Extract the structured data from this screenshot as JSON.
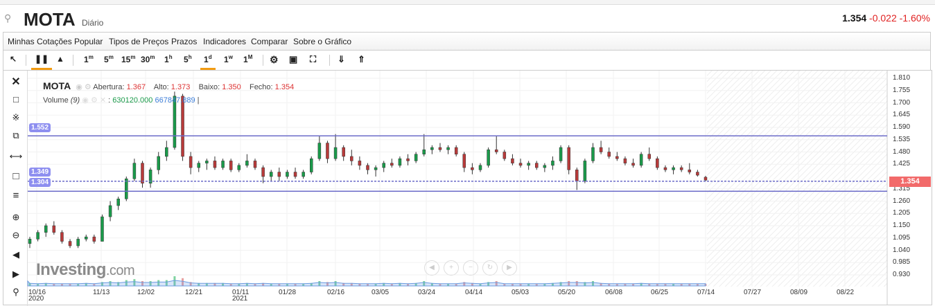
{
  "header": {
    "symbol": "MOTA",
    "period": "Diário",
    "last": "1.354",
    "change": "-0.022",
    "change_pct": "-1.60%"
  },
  "menu": [
    "Minhas Cotações",
    "Popular",
    "Tipos de Preços",
    "Prazos",
    "Indicadores",
    "Comparar",
    "Sobre o Gráfico"
  ],
  "toolbar": {
    "intervals": [
      {
        "n": "1",
        "u": "m"
      },
      {
        "n": "5",
        "u": "m"
      },
      {
        "n": "15",
        "u": "m"
      },
      {
        "n": "30",
        "u": "m"
      },
      {
        "n": "1",
        "u": "h"
      },
      {
        "n": "5",
        "u": "h"
      },
      {
        "n": "1",
        "u": "d"
      },
      {
        "n": "1",
        "u": "w"
      },
      {
        "n": "1",
        "u": "M"
      }
    ],
    "active_interval": "1d",
    "active_chart_type": "candlestick"
  },
  "legend": {
    "symbol": "MOTA",
    "open_label": "Abertura:",
    "open": "1.367",
    "high_label": "Alto:",
    "high": "1.373",
    "low_label": "Baixo:",
    "low": "1.350",
    "close_label": "Fecho:",
    "close": "1.354",
    "volume_label": "Volume",
    "volume_param": "(9)",
    "volume_value": "630120.000",
    "volume_ma": "667847.889"
  },
  "logo": {
    "main": "Investing",
    "suffix": ".com"
  },
  "colors": {
    "up": "#1a9a4a",
    "down": "#b83a3a",
    "hline": "#6b6bc8",
    "price_tag": "#f26a6a",
    "accent": "#f39c12"
  },
  "chart_data": {
    "type": "candlestick",
    "y_ticks": [
      "1.810",
      "1.755",
      "1.700",
      "1.645",
      "1.590",
      "1.535",
      "1.480",
      "1.425",
      "1.315",
      "1.260",
      "1.205",
      "1.150",
      "1.095",
      "1.040",
      "0.985",
      "0.930"
    ],
    "ylim": [
      0.93,
      1.81
    ],
    "x_ticks": [
      {
        "d": "10/16",
        "y": "2020"
      },
      {
        "d": "11/13"
      },
      {
        "d": "12/02"
      },
      {
        "d": "12/21"
      },
      {
        "d": "01/11",
        "y": "2021"
      },
      {
        "d": "01/28"
      },
      {
        "d": "02/16"
      },
      {
        "d": "03/05"
      },
      {
        "d": "03/24"
      },
      {
        "d": "04/14"
      },
      {
        "d": "05/03"
      },
      {
        "d": "05/20"
      },
      {
        "d": "06/08"
      },
      {
        "d": "06/25"
      },
      {
        "d": "07/14"
      },
      {
        "d": "07/27"
      },
      {
        "d": "08/09"
      },
      {
        "d": "08/22"
      }
    ],
    "horizontal_lines": [
      {
        "value": "1.552"
      },
      {
        "value": "1.349"
      },
      {
        "value": "1.304"
      }
    ],
    "current_price": "1.354",
    "ohlc": [
      [
        1.07,
        1.1,
        1.05,
        1.09
      ],
      [
        1.09,
        1.13,
        1.08,
        1.12
      ],
      [
        1.12,
        1.16,
        1.1,
        1.15
      ],
      [
        1.15,
        1.17,
        1.11,
        1.12
      ],
      [
        1.12,
        1.13,
        1.07,
        1.08
      ],
      [
        1.08,
        1.09,
        1.05,
        1.06
      ],
      [
        1.06,
        1.1,
        1.05,
        1.09
      ],
      [
        1.09,
        1.11,
        1.08,
        1.1
      ],
      [
        1.1,
        1.11,
        1.07,
        1.08
      ],
      [
        1.08,
        1.2,
        1.08,
        1.19
      ],
      [
        1.19,
        1.26,
        1.17,
        1.24
      ],
      [
        1.24,
        1.28,
        1.22,
        1.27
      ],
      [
        1.27,
        1.37,
        1.26,
        1.36
      ],
      [
        1.36,
        1.45,
        1.35,
        1.43
      ],
      [
        1.43,
        1.44,
        1.32,
        1.34
      ],
      [
        1.34,
        1.41,
        1.32,
        1.4
      ],
      [
        1.4,
        1.48,
        1.38,
        1.46
      ],
      [
        1.46,
        1.53,
        1.44,
        1.5
      ],
      [
        1.5,
        1.75,
        1.49,
        1.73
      ],
      [
        1.73,
        1.74,
        1.44,
        1.46
      ],
      [
        1.46,
        1.48,
        1.38,
        1.41
      ],
      [
        1.41,
        1.44,
        1.39,
        1.43
      ],
      [
        1.43,
        1.45,
        1.4,
        1.44
      ],
      [
        1.44,
        1.46,
        1.4,
        1.41
      ],
      [
        1.41,
        1.45,
        1.4,
        1.44
      ],
      [
        1.44,
        1.45,
        1.39,
        1.4
      ],
      [
        1.4,
        1.43,
        1.39,
        1.42
      ],
      [
        1.42,
        1.47,
        1.41,
        1.44
      ],
      [
        1.44,
        1.45,
        1.4,
        1.41
      ],
      [
        1.41,
        1.42,
        1.34,
        1.37
      ],
      [
        1.37,
        1.4,
        1.35,
        1.39
      ],
      [
        1.39,
        1.41,
        1.35,
        1.37
      ],
      [
        1.37,
        1.4,
        1.36,
        1.39
      ],
      [
        1.39,
        1.41,
        1.36,
        1.37
      ],
      [
        1.37,
        1.4,
        1.36,
        1.39
      ],
      [
        1.39,
        1.46,
        1.38,
        1.45
      ],
      [
        1.45,
        1.55,
        1.44,
        1.52
      ],
      [
        1.52,
        1.53,
        1.43,
        1.45
      ],
      [
        1.45,
        1.56,
        1.44,
        1.5
      ],
      [
        1.5,
        1.51,
        1.44,
        1.46
      ],
      [
        1.46,
        1.49,
        1.42,
        1.44
      ],
      [
        1.44,
        1.46,
        1.4,
        1.42
      ],
      [
        1.42,
        1.43,
        1.38,
        1.4
      ],
      [
        1.4,
        1.42,
        1.37,
        1.41
      ],
      [
        1.41,
        1.44,
        1.39,
        1.43
      ],
      [
        1.43,
        1.45,
        1.41,
        1.42
      ],
      [
        1.42,
        1.46,
        1.41,
        1.45
      ],
      [
        1.45,
        1.47,
        1.42,
        1.44
      ],
      [
        1.44,
        1.48,
        1.43,
        1.47
      ],
      [
        1.47,
        1.56,
        1.46,
        1.49
      ],
      [
        1.49,
        1.51,
        1.47,
        1.5
      ],
      [
        1.5,
        1.52,
        1.48,
        1.49
      ],
      [
        1.49,
        1.51,
        1.47,
        1.5
      ],
      [
        1.5,
        1.51,
        1.46,
        1.47
      ],
      [
        1.47,
        1.48,
        1.39,
        1.41
      ],
      [
        1.41,
        1.43,
        1.38,
        1.4
      ],
      [
        1.4,
        1.43,
        1.39,
        1.42
      ],
      [
        1.42,
        1.5,
        1.41,
        1.49
      ],
      [
        1.49,
        1.55,
        1.47,
        1.48
      ],
      [
        1.48,
        1.49,
        1.44,
        1.45
      ],
      [
        1.45,
        1.47,
        1.42,
        1.43
      ],
      [
        1.43,
        1.45,
        1.41,
        1.42
      ],
      [
        1.42,
        1.44,
        1.4,
        1.43
      ],
      [
        1.43,
        1.44,
        1.4,
        1.41
      ],
      [
        1.41,
        1.43,
        1.39,
        1.42
      ],
      [
        1.42,
        1.46,
        1.4,
        1.44
      ],
      [
        1.44,
        1.51,
        1.43,
        1.5
      ],
      [
        1.5,
        1.51,
        1.38,
        1.4
      ],
      [
        1.4,
        1.41,
        1.31,
        1.35
      ],
      [
        1.35,
        1.45,
        1.34,
        1.44
      ],
      [
        1.44,
        1.52,
        1.43,
        1.5
      ],
      [
        1.5,
        1.53,
        1.47,
        1.48
      ],
      [
        1.48,
        1.5,
        1.45,
        1.46
      ],
      [
        1.46,
        1.48,
        1.44,
        1.45
      ],
      [
        1.45,
        1.46,
        1.42,
        1.43
      ],
      [
        1.43,
        1.45,
        1.41,
        1.42
      ],
      [
        1.42,
        1.48,
        1.41,
        1.47
      ],
      [
        1.47,
        1.5,
        1.44,
        1.45
      ],
      [
        1.45,
        1.46,
        1.4,
        1.41
      ],
      [
        1.41,
        1.42,
        1.39,
        1.4
      ],
      [
        1.4,
        1.42,
        1.38,
        1.41
      ],
      [
        1.41,
        1.42,
        1.39,
        1.4
      ],
      [
        1.4,
        1.43,
        1.38,
        1.39
      ],
      [
        1.39,
        1.4,
        1.37,
        1.376
      ],
      [
        1.367,
        1.373,
        1.35,
        1.354
      ]
    ],
    "volume": [
      3,
      2,
      3,
      2,
      2,
      2,
      2,
      3,
      2,
      4,
      5,
      4,
      6,
      7,
      5,
      5,
      6,
      6,
      10,
      8,
      4,
      3,
      3,
      3,
      3,
      2,
      2,
      3,
      2,
      3,
      2,
      2,
      2,
      2,
      2,
      3,
      5,
      4,
      5,
      3,
      3,
      2,
      2,
      2,
      3,
      2,
      3,
      2,
      3,
      5,
      3,
      2,
      2,
      2,
      4,
      3,
      2,
      4,
      5,
      2,
      2,
      2,
      2,
      2,
      2,
      3,
      4,
      5,
      5,
      4,
      5,
      3,
      2,
      2,
      2,
      2,
      3,
      2,
      2,
      2,
      2,
      2,
      2,
      2,
      2
    ]
  }
}
